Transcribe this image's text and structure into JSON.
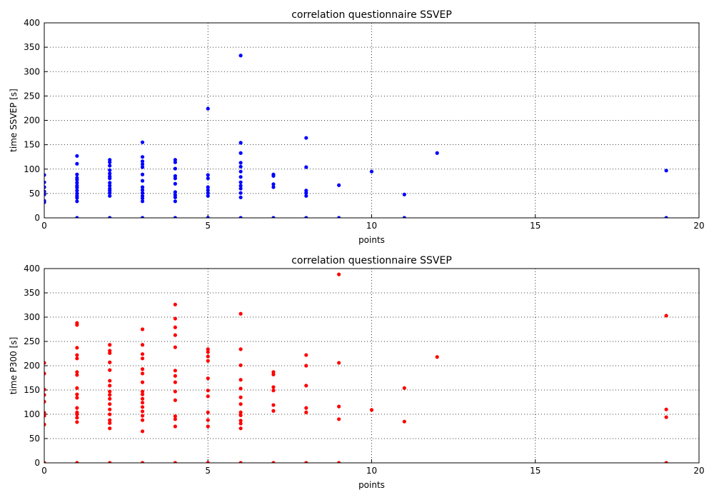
{
  "chart_data": [
    {
      "type": "scatter",
      "title": "correlation questionnaire SSVEP",
      "x_label": "points",
      "y_label": "time SSVEP [s]",
      "color": "#0000ff",
      "grid": true,
      "xlim": [
        0,
        20
      ],
      "ylim": [
        0,
        400
      ],
      "xticks": [
        0,
        5,
        10,
        15,
        20
      ],
      "yticks": [
        0,
        50,
        100,
        150,
        200,
        250,
        300,
        350,
        400
      ],
      "x": [
        0,
        0,
        0,
        0,
        0,
        0,
        0,
        1,
        1,
        1,
        1,
        1,
        1,
        1,
        1,
        1,
        1,
        1,
        1,
        1,
        1,
        2,
        2,
        2,
        2,
        2,
        2,
        2,
        2,
        2,
        2,
        2,
        2,
        2,
        2,
        3,
        3,
        3,
        3,
        3,
        3,
        3,
        3,
        3,
        3,
        3,
        3,
        3,
        3,
        4,
        4,
        4,
        4,
        4,
        4,
        4,
        4,
        4,
        4,
        4,
        5,
        5,
        5,
        5,
        5,
        5,
        5,
        5,
        6,
        6,
        6,
        6,
        6,
        6,
        6,
        6,
        6,
        6,
        6,
        6,
        6,
        7,
        7,
        7,
        7,
        7,
        8,
        8,
        8,
        8,
        8,
        8,
        9,
        9,
        10,
        11,
        11,
        12,
        19,
        19
      ],
      "y": [
        88,
        73,
        63,
        54,
        48,
        35,
        32,
        127,
        111,
        89,
        82,
        78,
        72,
        66,
        62,
        56,
        50,
        45,
        41,
        34,
        0,
        119,
        114,
        107,
        98,
        91,
        85,
        81,
        72,
        66,
        60,
        56,
        51,
        45,
        0,
        155,
        125,
        116,
        110,
        104,
        89,
        76,
        63,
        57,
        51,
        45,
        40,
        34,
        0,
        119,
        114,
        101,
        86,
        81,
        70,
        53,
        47,
        42,
        34,
        0,
        224,
        88,
        81,
        63,
        57,
        51,
        45,
        0,
        333,
        154,
        133,
        113,
        105,
        95,
        84,
        73,
        66,
        60,
        51,
        42,
        0,
        89,
        86,
        69,
        63,
        0,
        164,
        104,
        56,
        51,
        45,
        0,
        67,
        0,
        95,
        48,
        0,
        133,
        97,
        0
      ]
    },
    {
      "type": "scatter",
      "title": "correlation questionnaire SSVEP",
      "x_label": "points",
      "y_label": "time P300 [s]",
      "color": "#ff0000",
      "grid": true,
      "xlim": [
        0,
        20
      ],
      "ylim": [
        0,
        400
      ],
      "xticks": [
        0,
        5,
        10,
        15,
        20
      ],
      "yticks": [
        0,
        50,
        100,
        150,
        200,
        250,
        300,
        350,
        400
      ],
      "x": [
        0,
        0,
        0,
        0,
        0,
        0,
        0,
        0,
        0,
        1,
        1,
        1,
        1,
        1,
        1,
        1,
        1,
        1,
        1,
        1,
        1,
        1,
        1,
        1,
        1,
        2,
        2,
        2,
        2,
        2,
        2,
        2,
        2,
        2,
        2,
        2,
        2,
        2,
        2,
        2,
        2,
        2,
        3,
        3,
        3,
        3,
        3,
        3,
        3,
        3,
        3,
        3,
        3,
        3,
        3,
        3,
        3,
        3,
        3,
        4,
        4,
        4,
        4,
        4,
        4,
        4,
        4,
        4,
        4,
        4,
        4,
        4,
        4,
        5,
        5,
        5,
        5,
        5,
        5,
        5,
        5,
        5,
        5,
        5,
        6,
        6,
        6,
        6,
        6,
        6,
        6,
        6,
        6,
        6,
        6,
        6,
        6,
        7,
        7,
        7,
        7,
        7,
        7,
        7,
        8,
        8,
        8,
        8,
        8,
        8,
        9,
        9,
        9,
        9,
        9,
        10,
        11,
        11,
        12,
        19,
        19,
        19,
        19
      ],
      "y": [
        206,
        184,
        151,
        140,
        126,
        103,
        97,
        79,
        0,
        288,
        284,
        237,
        222,
        215,
        187,
        181,
        154,
        141,
        134,
        113,
        104,
        100,
        93,
        84,
        0,
        243,
        231,
        226,
        207,
        191,
        169,
        159,
        147,
        140,
        132,
        121,
        110,
        100,
        88,
        82,
        71,
        0,
        275,
        243,
        224,
        215,
        193,
        184,
        166,
        147,
        141,
        132,
        124,
        115,
        106,
        97,
        88,
        65,
        0,
        326,
        297,
        279,
        263,
        238,
        190,
        179,
        166,
        147,
        129,
        96,
        90,
        75,
        0,
        234,
        228,
        219,
        210,
        174,
        149,
        137,
        104,
        88,
        75,
        0,
        307,
        234,
        201,
        171,
        153,
        135,
        121,
        104,
        98,
        87,
        81,
        71,
        0,
        187,
        182,
        156,
        149,
        119,
        107,
        0,
        222,
        200,
        159,
        113,
        104,
        0,
        388,
        206,
        116,
        90,
        0,
        109,
        154,
        85,
        218,
        303,
        110,
        94,
        0
      ]
    }
  ]
}
